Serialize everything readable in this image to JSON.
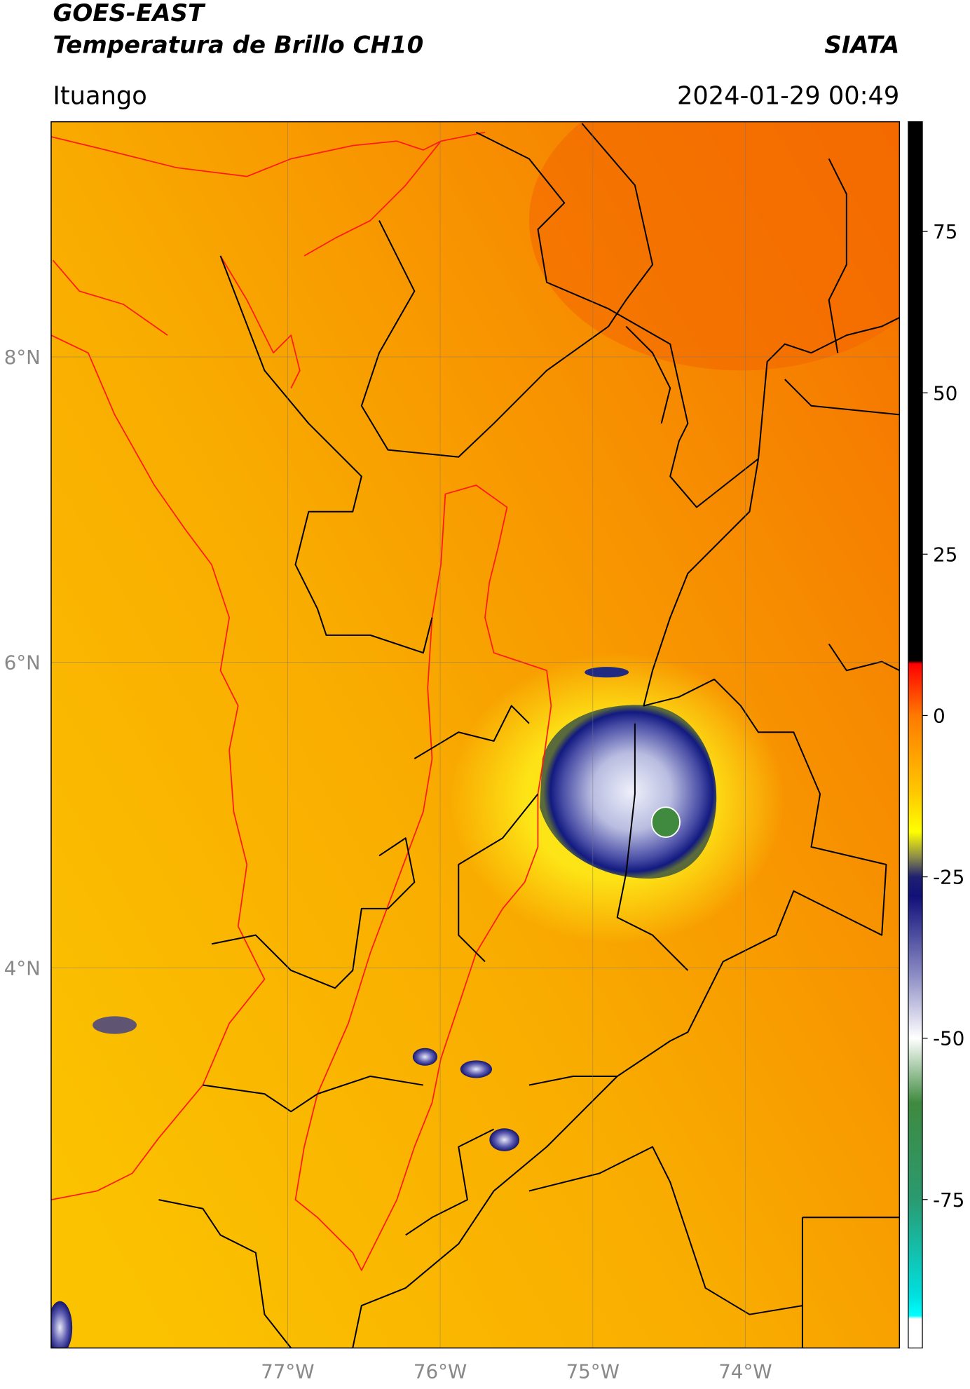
{
  "header": {
    "satellite": "GOES-EAST",
    "product": "Temperatura de Brillo CH10",
    "organization": "SIATA",
    "region": "Ituango",
    "timestamp": "2024-01-29 00:49"
  },
  "map": {
    "xlim": [
      -78.55,
      -72.99
    ],
    "ylim": [
      1.51,
      9.54
    ],
    "xticks": [
      {
        "value": -77,
        "label": "77°W"
      },
      {
        "value": -76,
        "label": "76°W"
      },
      {
        "value": -75,
        "label": "75°W"
      },
      {
        "value": -74,
        "label": "74°W"
      }
    ],
    "yticks": [
      {
        "value": 4,
        "label": "4°N"
      },
      {
        "value": 6,
        "label": "6°N"
      },
      {
        "value": 8,
        "label": "8°N"
      }
    ],
    "grid": true
  },
  "colorbar": {
    "ylim": [
      -98,
      92
    ],
    "yticks": [
      -75,
      -50,
      -25,
      0,
      25,
      50,
      75
    ],
    "colormap": [
      {
        "value": 92,
        "color": "#000000"
      },
      {
        "value": 8.5,
        "color": "#000000"
      },
      {
        "value": 8,
        "color": "#ff0000"
      },
      {
        "value": 0,
        "color": "#ff7a00"
      },
      {
        "value": -12,
        "color": "#ffc800"
      },
      {
        "value": -18,
        "color": "#ffff00"
      },
      {
        "value": -22,
        "color": "#8a8a4a"
      },
      {
        "value": -25,
        "color": "#202070"
      },
      {
        "value": -28,
        "color": "#10107a"
      },
      {
        "value": -40,
        "color": "#8a8ac4"
      },
      {
        "value": -50,
        "color": "#ffffff"
      },
      {
        "value": -60,
        "color": "#3f8a3f"
      },
      {
        "value": -75,
        "color": "#2a9a70"
      },
      {
        "value": -90,
        "color": "#00e0e0"
      },
      {
        "value": -93,
        "color": "#00ffff"
      },
      {
        "value": -93.5,
        "color": "#ffffff"
      },
      {
        "value": -98,
        "color": "#ffffff"
      }
    ]
  }
}
